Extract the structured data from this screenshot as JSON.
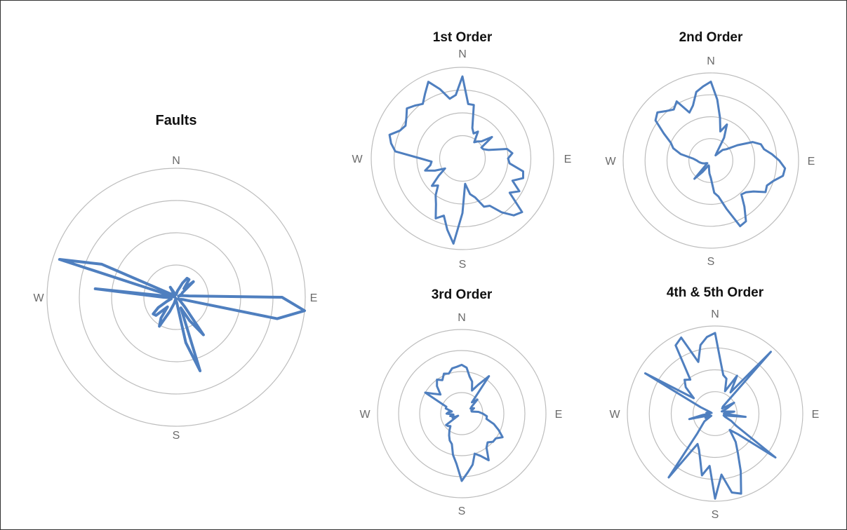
{
  "colors": {
    "line": "#4f7fbf",
    "ring": "#bdbdbd",
    "label": "#6b6b6b",
    "title": "#111111"
  },
  "chart_data": [
    {
      "type": "radar",
      "title": "Faults",
      "directions": [
        "N",
        "E",
        "S",
        "W"
      ],
      "rings": 4,
      "rmax": 1.0,
      "values": [
        0.02,
        0.03,
        0.05,
        0.07,
        0.12,
        0.17,
        0.17,
        0.09,
        0.18,
        0.06,
        0.05,
        0.02,
        0.04,
        0.06,
        0.1,
        0.82,
        1.0,
        0.8,
        0.06,
        0.04,
        0.04,
        0.02,
        0.04,
        0.1,
        0.36,
        0.21,
        0.09,
        0.6,
        0.36,
        0.04,
        0.03,
        0.02,
        0.01,
        0.05,
        0.12,
        0.26,
        0.2,
        0.1,
        0.21,
        0.22,
        0.16,
        0.08,
        0.04,
        0.04,
        0.04,
        0.1,
        0.63,
        0.01,
        0.95,
        0.63,
        0.06,
        0.04,
        0.03,
        0.04,
        0.03,
        0.09,
        0.04,
        0.03,
        0.02,
        0.02
      ]
    },
    {
      "type": "radar",
      "title": "1st Order",
      "directions": [
        "N",
        "E",
        "S",
        "W"
      ],
      "rings": 4,
      "rmax": 1.0,
      "values": [
        0.9,
        0.6,
        0.6,
        0.35,
        0.3,
        0.34,
        0.22,
        0.25,
        0.28,
        0.4,
        0.24,
        0.25,
        0.3,
        0.5,
        0.55,
        0.5,
        0.52,
        0.68,
        0.7,
        0.6,
        0.72,
        0.64,
        0.88,
        0.84,
        0.73,
        0.6,
        0.58,
        0.45,
        0.4,
        0.28,
        0.6,
        0.94,
        0.8,
        0.66,
        0.72,
        0.58,
        0.5,
        0.4,
        0.45,
        0.32,
        0.22,
        0.33,
        0.43,
        0.36,
        0.34,
        0.46,
        0.74,
        0.8,
        0.84,
        0.75,
        0.72,
        0.76,
        0.82,
        0.78,
        0.74,
        0.82,
        0.92,
        0.8,
        0.67,
        0.7
      ]
    },
    {
      "type": "radar",
      "title": "2nd Order",
      "directions": [
        "N",
        "E",
        "S",
        "W"
      ],
      "rings": 4,
      "rmax": 1.0,
      "values": [
        0.9,
        0.7,
        0.5,
        0.35,
        0.45,
        0.3,
        0.12,
        0.08,
        0.18,
        0.22,
        0.35,
        0.52,
        0.6,
        0.62,
        0.7,
        0.78,
        0.85,
        0.84,
        0.75,
        0.7,
        0.72,
        0.6,
        0.54,
        0.52,
        0.65,
        0.8,
        0.82,
        0.58,
        0.42,
        0.37,
        0.2,
        0.15,
        0.1,
        0.07,
        0.06,
        0.08,
        0.16,
        0.28,
        0.08,
        0.05,
        0.06,
        0.08,
        0.1,
        0.12,
        0.14,
        0.16,
        0.2,
        0.35,
        0.45,
        0.5,
        0.62,
        0.78,
        0.82,
        0.76,
        0.72,
        0.78,
        0.6,
        0.66,
        0.8,
        0.85
      ]
    },
    {
      "type": "radar",
      "title": "3rd Order",
      "directions": [
        "N",
        "E",
        "S",
        "W"
      ],
      "rings": 4,
      "rmax": 1.0,
      "values": [
        0.58,
        0.55,
        0.45,
        0.4,
        0.3,
        0.4,
        0.55,
        0.18,
        0.25,
        0.15,
        0.12,
        0.16,
        0.12,
        0.12,
        0.2,
        0.25,
        0.3,
        0.3,
        0.4,
        0.48,
        0.56,
        0.5,
        0.5,
        0.46,
        0.5,
        0.64,
        0.55,
        0.5,
        0.62,
        0.7,
        0.8,
        0.6,
        0.5,
        0.38,
        0.35,
        0.3,
        0.25,
        0.2,
        0.22,
        0.23,
        0.05,
        0.12,
        0.1,
        0.14,
        0.1,
        0.18,
        0.16,
        0.12,
        0.2,
        0.2,
        0.5,
        0.4,
        0.34,
        0.44,
        0.5,
        0.46,
        0.52,
        0.5,
        0.55,
        0.56
      ]
    },
    {
      "type": "radar",
      "title": "4th & 5th Order",
      "directions": [
        "N",
        "E",
        "S",
        "W"
      ],
      "rings": 4,
      "rmax": 1.0,
      "values": [
        0.92,
        0.6,
        0.45,
        0.42,
        0.28,
        0.5,
        0.3,
        0.95,
        0.12,
        0.1,
        0.25,
        0.15,
        0.08,
        0.12,
        0.22,
        0.1,
        0.35,
        0.1,
        0.12,
        0.2,
        0.28,
        0.85,
        0.35,
        0.25,
        0.4,
        0.52,
        0.72,
        0.96,
        0.92,
        0.7,
        0.97,
        0.6,
        0.72,
        0.55,
        0.45,
        0.4,
        0.9,
        0.3,
        0.2,
        0.15,
        0.05,
        0.12,
        0.06,
        0.3,
        0.14,
        0.06,
        0.1,
        0.04,
        0.06,
        0.18,
        0.92,
        0.3,
        0.45,
        0.52,
        0.48,
        0.9,
        0.95,
        0.62,
        0.8,
        0.88
      ]
    }
  ]
}
